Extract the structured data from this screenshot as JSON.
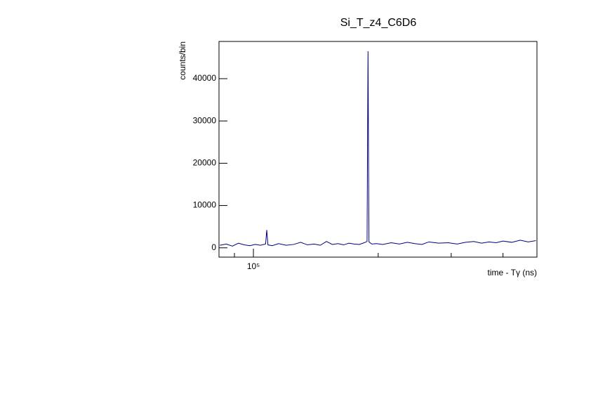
{
  "chart_data": {
    "type": "line",
    "title": "Si_T_z4_C6D6",
    "x_label": "time - Tγ (ns)",
    "y_label": "counts/bin",
    "x_log": true,
    "color": "#000080",
    "xlim": [
      82600,
      483000
    ],
    "ylim": [
      -2200,
      48800
    ],
    "xticks": [
      {
        "value": 100000,
        "label": "10⁵"
      }
    ],
    "xminorticks": [
      90000,
      200000,
      300000,
      400000
    ],
    "yticks": [
      0,
      10000,
      20000,
      30000,
      40000
    ],
    "x": [
      83000,
      86000,
      89000,
      92000,
      95000,
      98000,
      101000,
      104000,
      107000,
      107700,
      108400,
      111000,
      115000,
      120000,
      125000,
      130000,
      135000,
      140000,
      145000,
      150000,
      155000,
      160000,
      165000,
      170000,
      175000,
      180000,
      185000,
      188000,
      189000,
      190000,
      193000,
      198000,
      205000,
      215000,
      225000,
      235000,
      245000,
      255000,
      265000,
      280000,
      295000,
      310000,
      325000,
      340000,
      355000,
      370000,
      385000,
      400000,
      420000,
      440000,
      460000,
      480000
    ],
    "values": [
      600,
      900,
      400,
      1100,
      700,
      500,
      800,
      600,
      900,
      4200,
      700,
      500,
      1000,
      600,
      800,
      1300,
      700,
      900,
      600,
      1500,
      800,
      1000,
      700,
      1100,
      900,
      800,
      1200,
      1500,
      46500,
      1400,
      900,
      1000,
      800,
      1200,
      900,
      1300,
      1000,
      800,
      1400,
      1100,
      1200,
      900,
      1300,
      1500,
      1100,
      1400,
      1200,
      1600,
      1300,
      1800,
      1400,
      1700
    ]
  }
}
